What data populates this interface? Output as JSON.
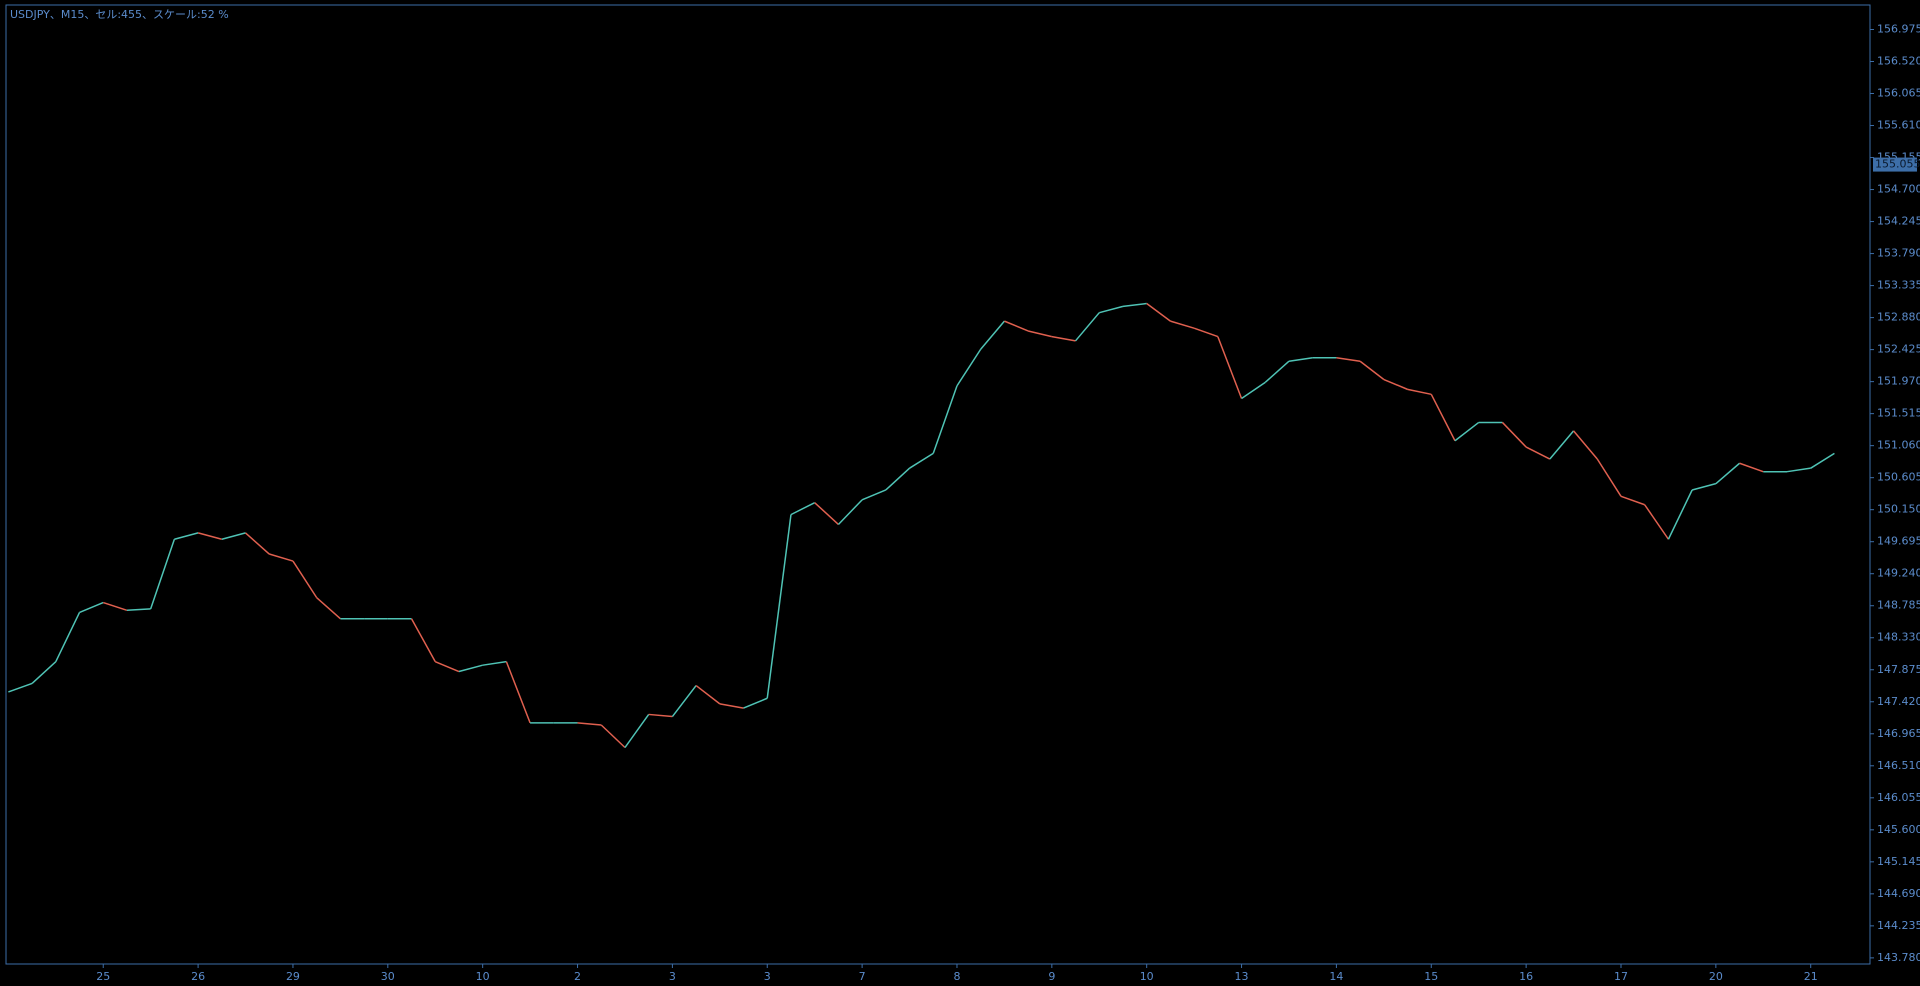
{
  "chart_data": {
    "type": "line",
    "title": "USDJPY、M15、セル:455、スケール:52 %",
    "categories": [
      null,
      null,
      null,
      null,
      "25",
      null,
      null,
      null,
      "26",
      null,
      null,
      null,
      "29",
      null,
      null,
      null,
      "30",
      null,
      null,
      null,
      "10",
      null,
      null,
      null,
      "2",
      null,
      null,
      null,
      "3",
      null,
      null,
      null,
      "3",
      null,
      null,
      null,
      "7",
      null,
      null,
      null,
      "8",
      null,
      null,
      null,
      "9",
      null,
      null,
      null,
      "10",
      null,
      null,
      null,
      "13",
      null,
      null,
      null,
      "14",
      null,
      null,
      null,
      "15",
      null,
      null,
      null,
      "16",
      null,
      null,
      null,
      "17",
      null,
      null,
      null,
      "20",
      null,
      null,
      null,
      "21",
      null
    ],
    "values": [
      147.56,
      147.68,
      147.99,
      148.69,
      148.83,
      148.72,
      148.74,
      149.73,
      149.82,
      149.73,
      149.82,
      149.52,
      149.42,
      148.9,
      148.6,
      148.6,
      148.6,
      148.6,
      147.99,
      147.85,
      147.94,
      147.99,
      147.12,
      147.12,
      147.12,
      147.09,
      146.77,
      147.24,
      147.21,
      147.65,
      147.39,
      147.33,
      147.47,
      150.08,
      150.25,
      149.94,
      150.29,
      150.43,
      150.74,
      150.95,
      151.91,
      152.43,
      152.83,
      152.69,
      152.61,
      152.55,
      152.95,
      153.04,
      153.08,
      152.83,
      152.73,
      152.61,
      151.73,
      151.96,
      152.26,
      152.31,
      152.31,
      152.26,
      152.0,
      151.86,
      151.79,
      151.13,
      151.39,
      151.39,
      151.04,
      150.87,
      151.27,
      150.87,
      150.34,
      150.22,
      149.73,
      150.43,
      150.52,
      150.81,
      150.69,
      150.69,
      150.74,
      150.95
    ],
    "up_color": "#4fc3b5",
    "down_color": "#e0604f",
    "current_price": 155.055,
    "ylim": [
      143.693,
      157.323
    ],
    "yticks": [
      {
        "value": 143.78,
        "label": "143.780"
      },
      144.235,
      {
        "value": 144.69,
        "label": "144.690"
      },
      145.145,
      {
        "value": 145.6,
        "label": "145.600"
      },
      146.055,
      {
        "value": 146.51,
        "label": "146.510"
      },
      146.965,
      {
        "value": 147.42,
        "label": "147.420"
      },
      147.875,
      {
        "value": 148.33,
        "label": "148.330"
      },
      148.785,
      {
        "value": 149.24,
        "label": "149.240"
      },
      149.695,
      {
        "value": 150.15,
        "label": "150.150"
      },
      150.605,
      {
        "value": 151.06,
        "label": "151.060"
      },
      151.515,
      {
        "value": 151.97,
        "label": "151.970"
      },
      152.425,
      {
        "value": 152.88,
        "label": "152.880"
      },
      153.335,
      {
        "value": 153.79,
        "label": "153.790"
      },
      154.245,
      {
        "value": 154.7,
        "label": "154.700"
      },
      155.155,
      {
        "value": 155.61,
        "label": "155.610"
      },
      156.065,
      {
        "value": 156.52,
        "label": "156.520"
      },
      156.975
    ],
    "grid": false
  }
}
